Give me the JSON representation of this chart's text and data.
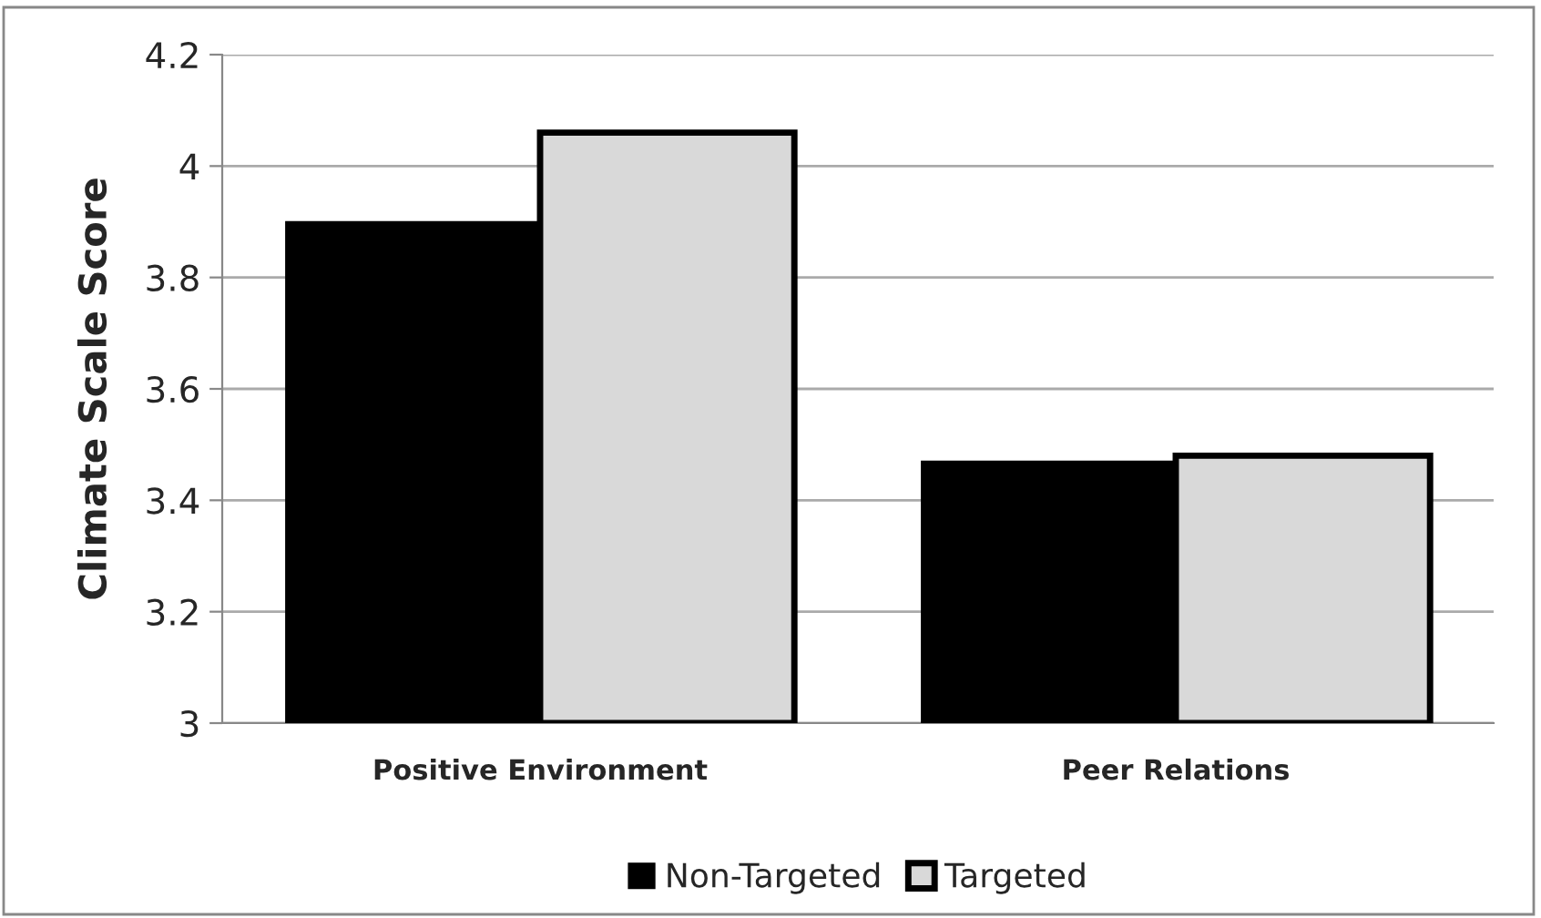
{
  "chart_data": {
    "type": "bar",
    "ylabel": "Climate Scale Score",
    "categories": [
      "Positive Environment",
      "Peer Relations"
    ],
    "series": [
      {
        "name": "Non-Targeted",
        "color": "#000000",
        "values": [
          3.9,
          3.47
        ]
      },
      {
        "name": "Targeted",
        "color": "#d9d9d9",
        "values": [
          4.06,
          3.48
        ]
      }
    ],
    "ylim": [
      3,
      4.2
    ],
    "yticks": [
      3,
      3.2,
      3.4,
      3.6,
      3.8,
      4,
      4.2
    ],
    "grid": "y",
    "legend": "bottom"
  }
}
